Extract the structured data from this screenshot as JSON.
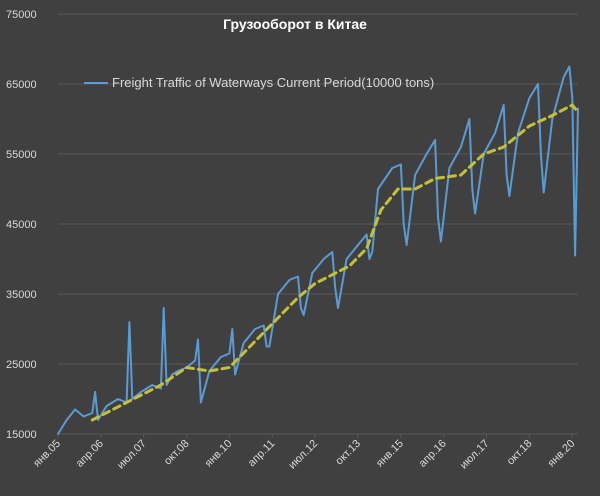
{
  "title": "Грузооборот в Китае",
  "colors": {
    "background": "#404040",
    "gridline": "#595959",
    "series_line": "#5b9bd5",
    "trend_line": "#c3c03a",
    "text": "#d9d9d9"
  },
  "chart_data": {
    "type": "line",
    "title": "Грузооборот в Китае",
    "xlabel": "",
    "ylabel": "",
    "ylim": [
      15000,
      75000
    ],
    "yticks": [
      15000,
      25000,
      35000,
      45000,
      55000,
      65000,
      75000
    ],
    "ytick_labels": [
      "15000",
      "25000",
      "35000",
      "45000",
      "55000",
      "65000",
      "75000"
    ],
    "xlim": [
      "2005-01",
      "2020-03"
    ],
    "xticks": [
      "2005-01",
      "2006-04",
      "2007-07",
      "2008-10",
      "2010-01",
      "2011-04",
      "2012-07",
      "2013-10",
      "2015-01",
      "2016-04",
      "2017-07",
      "2018-10",
      "2020-01"
    ],
    "xtick_labels": [
      "янв.05",
      "апр.06",
      "июл.07",
      "окт.08",
      "янв.10",
      "апр.11",
      "июл.12",
      "окт.13",
      "янв.15",
      "апр.16",
      "июл.17",
      "окт.18",
      "янв.20"
    ],
    "grid": true,
    "legend_position": "top-left",
    "series": [
      {
        "name": "Freight Traffic of Waterways Current Period(10000 tons)",
        "style": "solid",
        "points": [
          [
            "2005-01",
            15000
          ],
          [
            "2005-04",
            17000
          ],
          [
            "2005-07",
            18500
          ],
          [
            "2005-10",
            17500
          ],
          [
            "2006-01",
            18000
          ],
          [
            "2006-02",
            21000
          ],
          [
            "2006-03",
            17000
          ],
          [
            "2006-06",
            19000
          ],
          [
            "2006-10",
            20000
          ],
          [
            "2007-01",
            19500
          ],
          [
            "2007-02",
            31000
          ],
          [
            "2007-03",
            20000
          ],
          [
            "2007-06",
            21000
          ],
          [
            "2007-10",
            22000
          ],
          [
            "2008-01",
            21500
          ],
          [
            "2008-02",
            33000
          ],
          [
            "2008-03",
            22000
          ],
          [
            "2008-05",
            23500
          ],
          [
            "2008-07",
            24000
          ],
          [
            "2008-10",
            24500
          ],
          [
            "2009-01",
            25500
          ],
          [
            "2009-02",
            28500
          ],
          [
            "2009-03",
            19500
          ],
          [
            "2009-06",
            24000
          ],
          [
            "2009-10",
            26000
          ],
          [
            "2010-01",
            26500
          ],
          [
            "2010-02",
            30000
          ],
          [
            "2010-03",
            23500
          ],
          [
            "2010-06",
            28000
          ],
          [
            "2010-10",
            30000
          ],
          [
            "2011-01",
            30500
          ],
          [
            "2011-02",
            27500
          ],
          [
            "2011-03",
            27500
          ],
          [
            "2011-06",
            35000
          ],
          [
            "2011-10",
            37000
          ],
          [
            "2012-01",
            37500
          ],
          [
            "2012-02",
            33000
          ],
          [
            "2012-03",
            32000
          ],
          [
            "2012-06",
            38000
          ],
          [
            "2012-10",
            40000
          ],
          [
            "2013-01",
            41000
          ],
          [
            "2013-02",
            36000
          ],
          [
            "2013-03",
            33000
          ],
          [
            "2013-06",
            40000
          ],
          [
            "2013-10",
            42000
          ],
          [
            "2014-01",
            43500
          ],
          [
            "2014-02",
            40000
          ],
          [
            "2014-03",
            41000
          ],
          [
            "2014-05",
            50000
          ],
          [
            "2014-10",
            53000
          ],
          [
            "2015-01",
            53500
          ],
          [
            "2015-02",
            45000
          ],
          [
            "2015-03",
            42000
          ],
          [
            "2015-06",
            52000
          ],
          [
            "2015-10",
            55000
          ],
          [
            "2016-01",
            57000
          ],
          [
            "2016-02",
            46000
          ],
          [
            "2016-03",
            42500
          ],
          [
            "2016-06",
            53000
          ],
          [
            "2016-10",
            56000
          ],
          [
            "2017-01",
            60000
          ],
          [
            "2017-02",
            50000
          ],
          [
            "2017-03",
            46500
          ],
          [
            "2017-06",
            55000
          ],
          [
            "2017-10",
            58000
          ],
          [
            "2018-01",
            62000
          ],
          [
            "2018-02",
            52000
          ],
          [
            "2018-03",
            49000
          ],
          [
            "2018-06",
            58000
          ],
          [
            "2018-10",
            63000
          ],
          [
            "2019-01",
            65000
          ],
          [
            "2019-02",
            55000
          ],
          [
            "2019-03",
            49500
          ],
          [
            "2019-06",
            60000
          ],
          [
            "2019-10",
            66000
          ],
          [
            "2019-12",
            67500
          ],
          [
            "2020-01",
            63000
          ],
          [
            "2020-02",
            40500
          ],
          [
            "2020-03",
            61500
          ]
        ]
      },
      {
        "name": "",
        "style": "dashed",
        "points": [
          [
            "2006-01",
            17000
          ],
          [
            "2007-01",
            19500
          ],
          [
            "2008-01",
            22000
          ],
          [
            "2008-10",
            24500
          ],
          [
            "2009-06",
            24000
          ],
          [
            "2010-01",
            24500
          ],
          [
            "2011-01",
            29500
          ],
          [
            "2012-01",
            34500
          ],
          [
            "2012-07",
            36500
          ],
          [
            "2013-07",
            39000
          ],
          [
            "2014-01",
            41500
          ],
          [
            "2014-06",
            47000
          ],
          [
            "2014-12",
            50000
          ],
          [
            "2015-06",
            50000
          ],
          [
            "2016-01",
            51500
          ],
          [
            "2016-10",
            52000
          ],
          [
            "2017-06",
            55000
          ],
          [
            "2018-01",
            56000
          ],
          [
            "2018-10",
            59000
          ],
          [
            "2019-06",
            60500
          ],
          [
            "2020-01",
            62000
          ],
          [
            "2020-03",
            61000
          ]
        ]
      }
    ]
  }
}
